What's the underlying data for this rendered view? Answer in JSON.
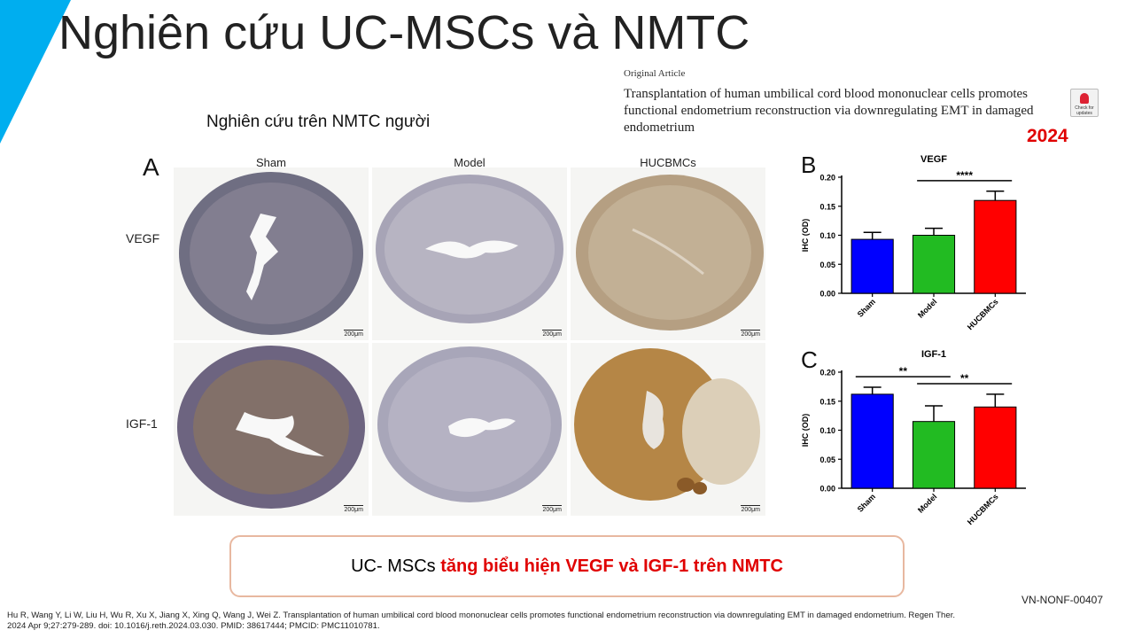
{
  "slide": {
    "title": "Nghiên cứu UC-MSCs và NMTC",
    "accent_color": "#00aeef",
    "subtitle": "Nghiên cứu trên NMTC người",
    "article": {
      "type_label": "Original Article",
      "title": "Transplantation of human umbilical cord blood mononuclear cells promotes functional endometrium reconstruction via downregulating EMT in damaged endometrium",
      "check_label": "Check for updates",
      "year": "2024"
    },
    "panel_a": {
      "label": "A",
      "columns": [
        "Sham",
        "Model",
        "HUCBMCs"
      ],
      "rows": [
        "VEGF",
        "IGF-1"
      ],
      "scale_bar": "200μm"
    },
    "conclusion": {
      "prefix": "UC- MSCs ",
      "highlight": "tăng biểu hiện VEGF và IGF-1 trên NMTC"
    },
    "code": "VN-NONF-00407",
    "reference_line1": "Hu R, Wang Y, Li W, Liu H, Wu R, Xu X, Jiang X, Xing Q, Wang J, Wei Z. Transplantation of human umbilical cord blood mononuclear cells promotes functional endometrium reconstruction via downregulating EMT in damaged endometrium. Regen Ther.",
    "reference_line2": "2024 Apr 9;27:279-289. doi: 10.1016/j.reth.2024.03.030. PMID: 38617444; PMCID: PMC11010781."
  },
  "chart_data": [
    {
      "type": "bar",
      "panel_label": "B",
      "title": "VEGF",
      "ylabel": "IHC (OD)",
      "categories": [
        "Sham",
        "Model",
        "HUCBMCs"
      ],
      "values": [
        0.093,
        0.1,
        0.16
      ],
      "errors": [
        0.012,
        0.012,
        0.016
      ],
      "colors": [
        "#0000ff",
        "#22bb22",
        "#ff0000"
      ],
      "ylim": [
        0,
        0.2
      ],
      "yticks": [
        "0.00",
        "0.05",
        "0.10",
        "0.15",
        "0.20"
      ],
      "significance": [
        {
          "from": 1,
          "to": 2,
          "label": "****"
        }
      ]
    },
    {
      "type": "bar",
      "panel_label": "C",
      "title": "IGF-1",
      "ylabel": "IHC (OD)",
      "categories": [
        "Sham",
        "Model",
        "HUCBMCs"
      ],
      "values": [
        0.162,
        0.115,
        0.14
      ],
      "errors": [
        0.012,
        0.027,
        0.022
      ],
      "colors": [
        "#0000ff",
        "#22bb22",
        "#ff0000"
      ],
      "ylim": [
        0,
        0.2
      ],
      "yticks": [
        "0.00",
        "0.05",
        "0.10",
        "0.15",
        "0.20"
      ],
      "significance": [
        {
          "from": 0,
          "to": 1,
          "label": "**"
        },
        {
          "from": 1,
          "to": 2,
          "label": "**"
        }
      ]
    }
  ]
}
